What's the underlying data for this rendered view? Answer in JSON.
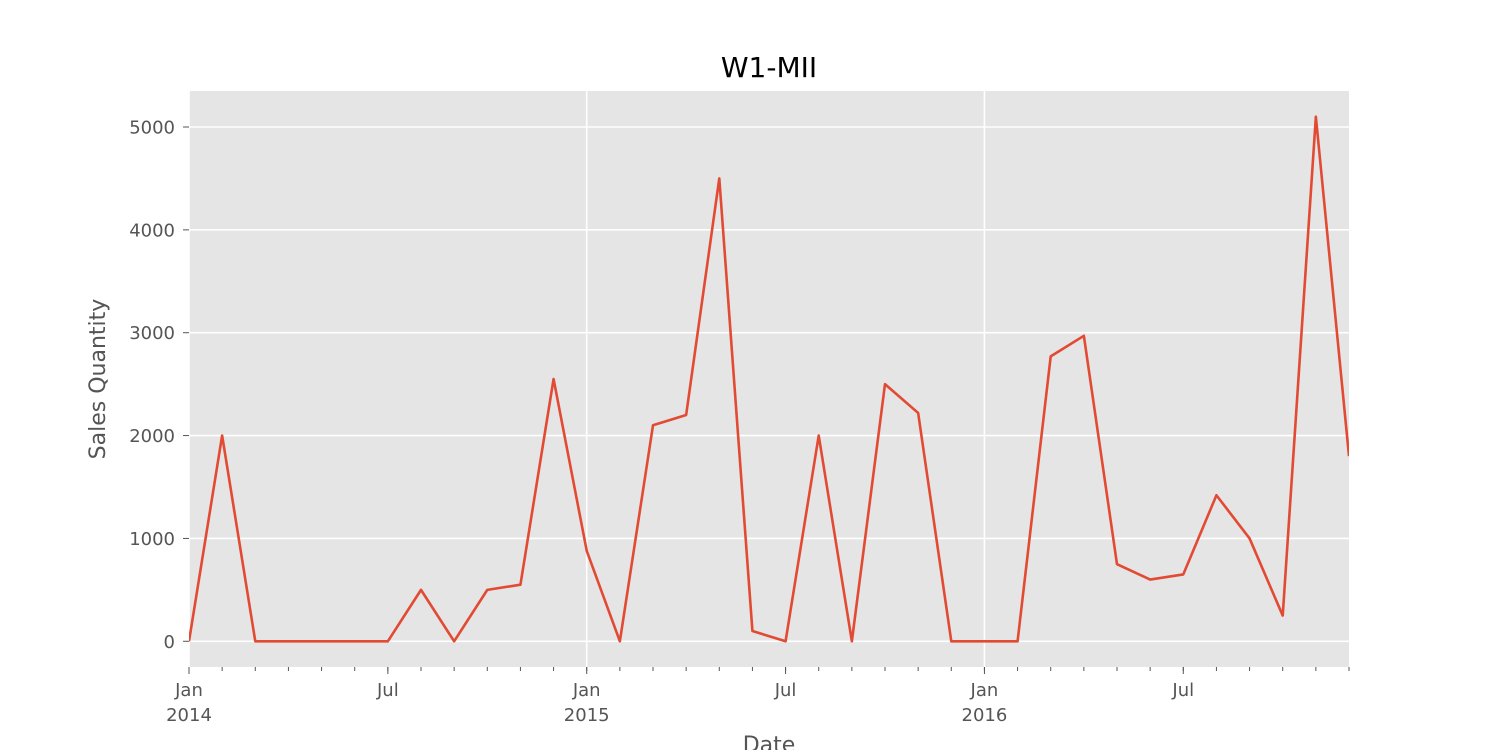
{
  "chart_data": {
    "type": "line",
    "title": "W1-MII",
    "xlabel": "Date",
    "ylabel": "Sales Quantity",
    "x": [
      "2014-01",
      "2014-02",
      "2014-03",
      "2014-04",
      "2014-05",
      "2014-06",
      "2014-07",
      "2014-08",
      "2014-09",
      "2014-10",
      "2014-11",
      "2014-12",
      "2015-01",
      "2015-02",
      "2015-03",
      "2015-04",
      "2015-05",
      "2015-06",
      "2015-07",
      "2015-08",
      "2015-09",
      "2015-10",
      "2015-11",
      "2015-12",
      "2016-01",
      "2016-02",
      "2016-03",
      "2016-04",
      "2016-05",
      "2016-06",
      "2016-07",
      "2016-08",
      "2016-09",
      "2016-10",
      "2016-11",
      "2016-12"
    ],
    "series": [
      {
        "values": [
          0,
          2000,
          0,
          0,
          0,
          0,
          0,
          500,
          0,
          500,
          550,
          2550,
          880,
          0,
          2100,
          2200,
          4500,
          100,
          0,
          2000,
          0,
          2500,
          2220,
          0,
          0,
          0,
          2770,
          2970,
          750,
          600,
          650,
          1420,
          1000,
          250,
          5100,
          1800
        ],
        "color": "#E24A33"
      }
    ],
    "ylim": [
      -250,
      5350
    ],
    "yticks": [
      0,
      1000,
      2000,
      3000,
      4000,
      5000
    ],
    "ytick_labels": [
      "0",
      "1000",
      "2000",
      "3000",
      "4000",
      "5000"
    ],
    "xticks_major": [
      {
        "month": 0,
        "label": "Jan",
        "sublabel": "2014"
      },
      {
        "month": 6,
        "label": "Jul",
        "sublabel": ""
      },
      {
        "month": 12,
        "label": "Jan",
        "sublabel": "2015"
      },
      {
        "month": 18,
        "label": "Jul",
        "sublabel": ""
      },
      {
        "month": 24,
        "label": "Jan",
        "sublabel": "2016"
      },
      {
        "month": 30,
        "label": "Jul",
        "sublabel": ""
      }
    ],
    "grid": true,
    "background_color": "#E5E5E5",
    "grid_color": "#FFFFFF"
  }
}
